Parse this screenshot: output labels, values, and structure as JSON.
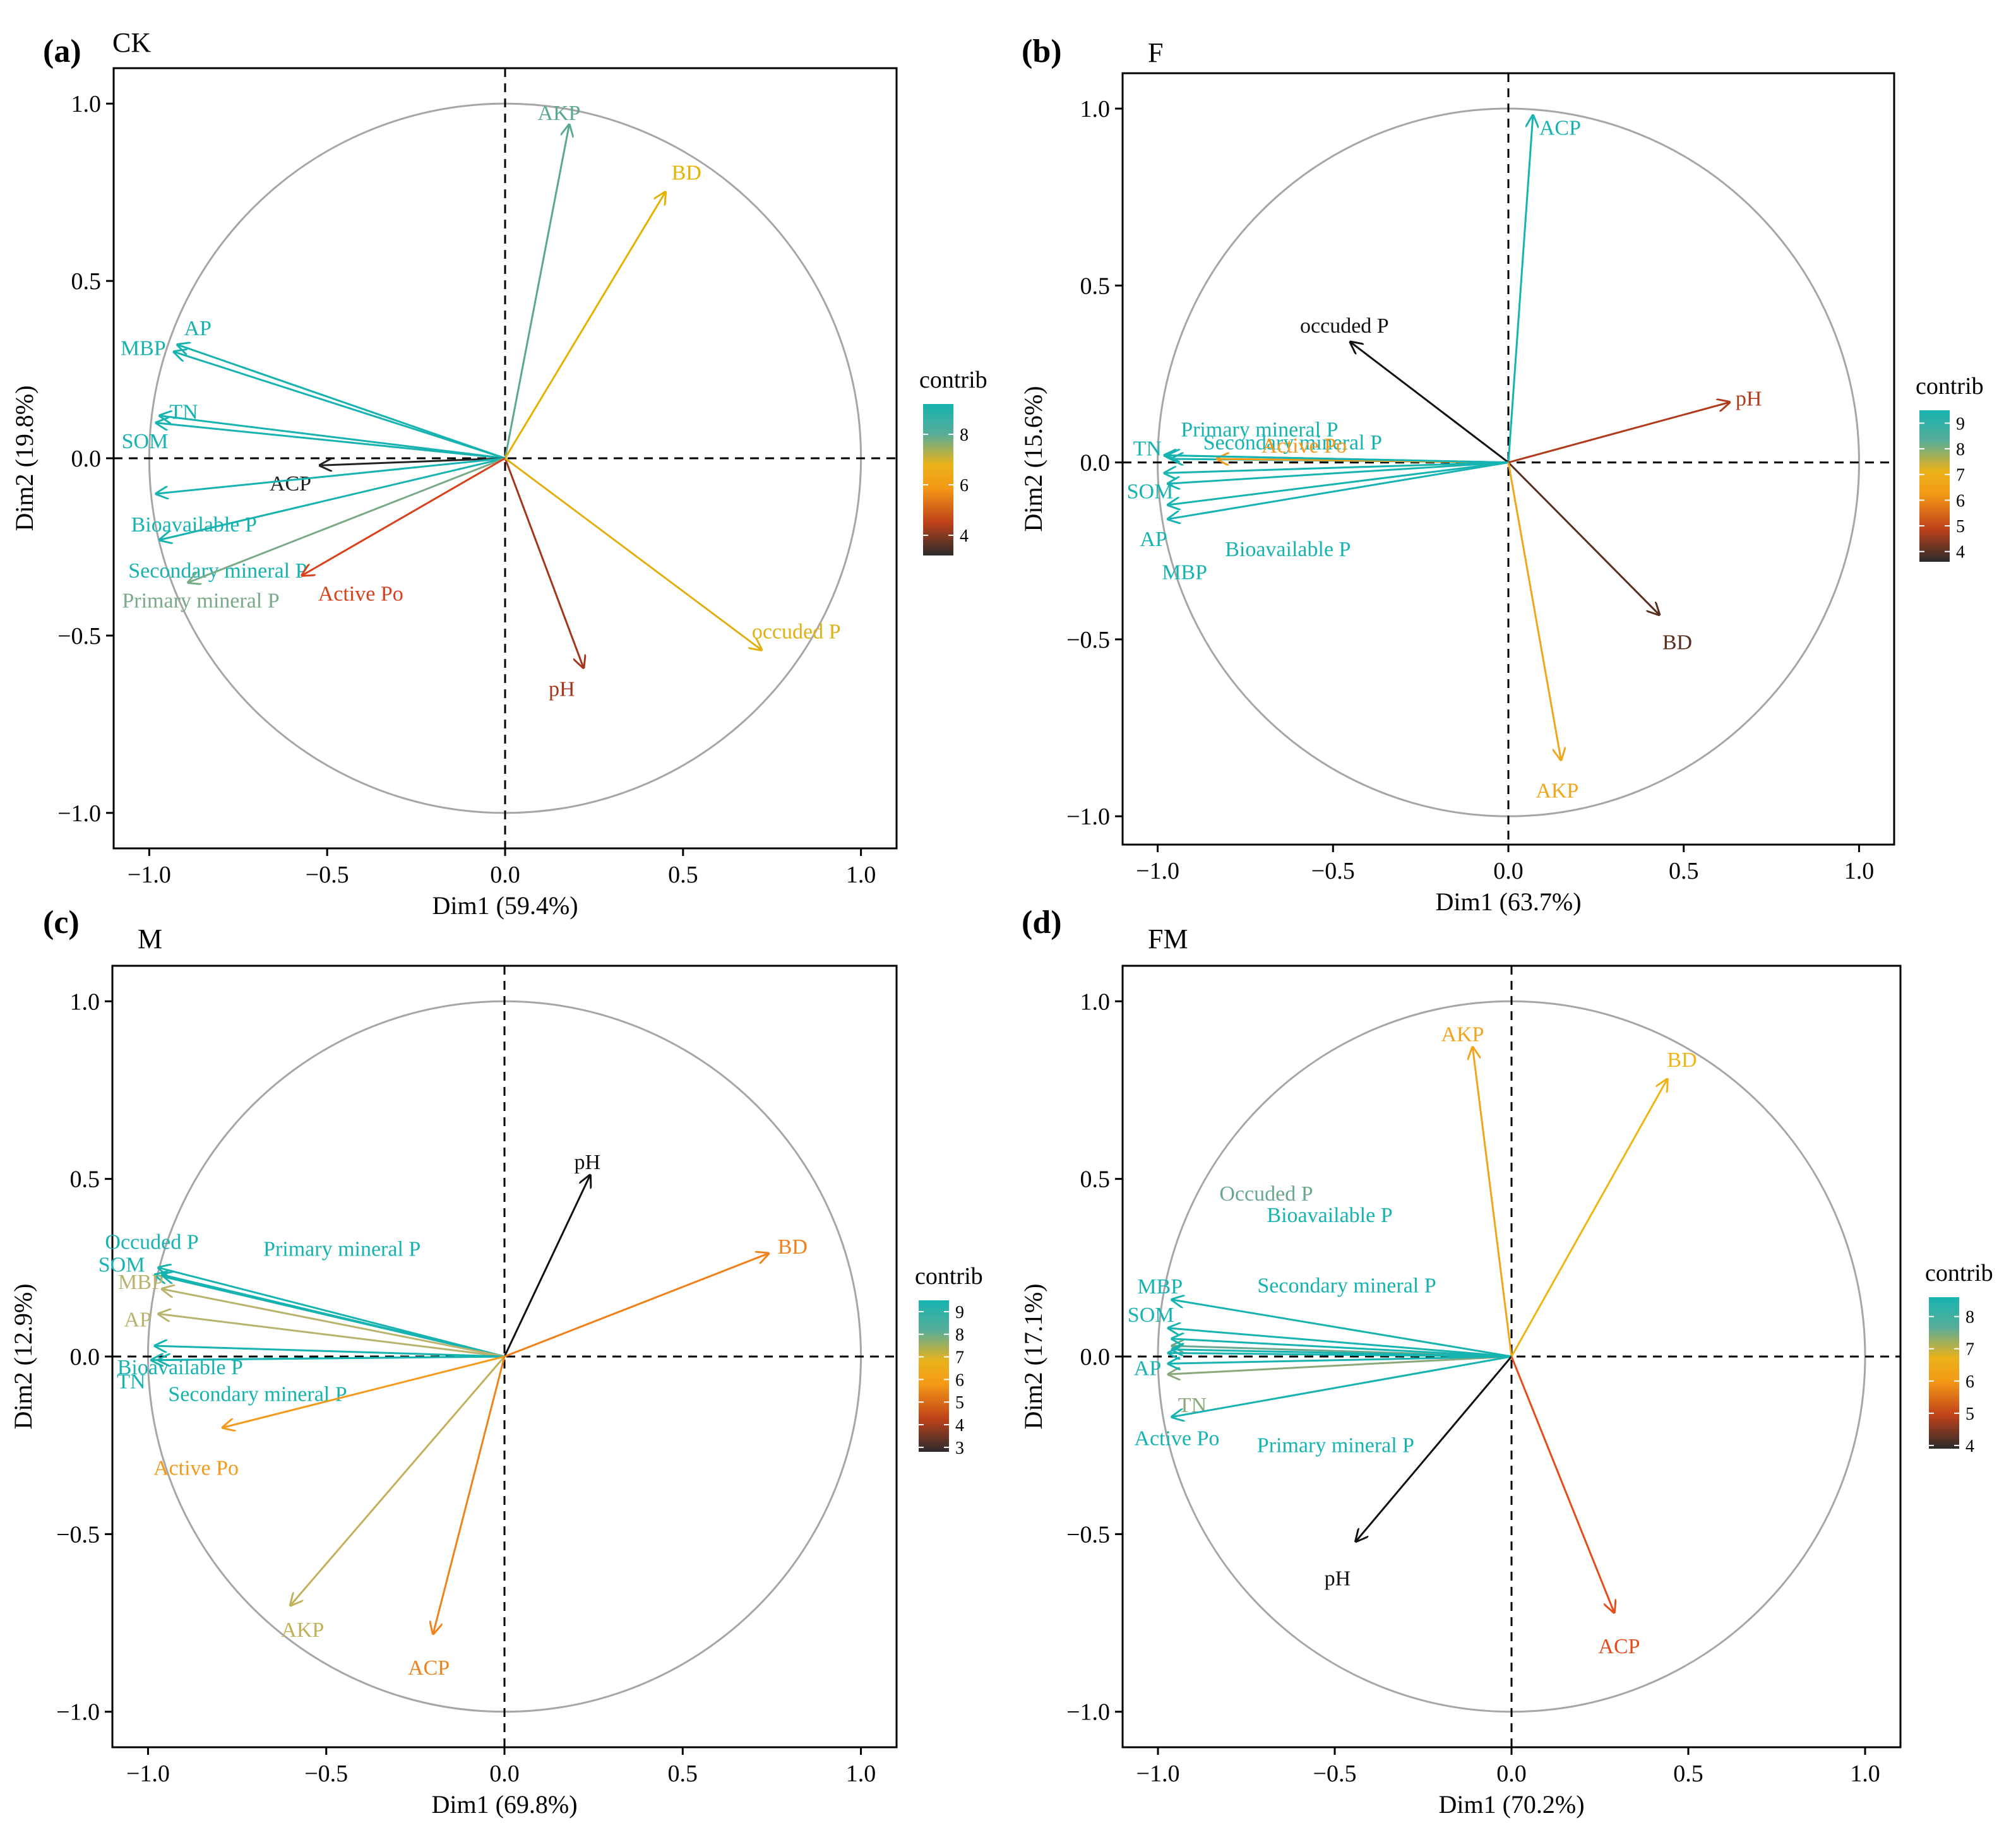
{
  "chart_data": [
    {
      "type": "scatter",
      "label": "(a)",
      "title": "CK",
      "xlabel": "Dim1 (59.4%)",
      "ylabel": "Dim2 (19.8%)",
      "xlim": [
        -1.1,
        1.1
      ],
      "ylim": [
        -1.1,
        1.1
      ],
      "xticks": [
        -1.0,
        -0.5,
        0.0,
        0.5,
        1.0
      ],
      "yticks": [
        -1.0,
        -0.5,
        0.0,
        0.5,
        1.0
      ],
      "xtick_labels": [
        "−1.0",
        "−0.5",
        "0.0",
        "0.5",
        "1.0"
      ],
      "ytick_labels": [
        "−1.0",
        "−0.5",
        "0.0",
        "0.5",
        "1.0"
      ],
      "legend_title": "contrib",
      "legend_ticks": [
        4,
        6,
        8
      ],
      "legend_range": [
        3.2,
        9.2
      ],
      "vectors": [
        {
          "name": "AKP",
          "x": 0.18,
          "y": 0.94,
          "color": "#5aa88f"
        },
        {
          "name": "BD",
          "x": 0.45,
          "y": 0.75,
          "color": "#e6b200"
        },
        {
          "name": "AP",
          "x": -0.92,
          "y": 0.32,
          "color": "#16b3b0"
        },
        {
          "name": "MBP",
          "x": -0.93,
          "y": 0.3,
          "color": "#16b3b0"
        },
        {
          "name": "TN",
          "x": -0.97,
          "y": 0.12,
          "color": "#16b3b0"
        },
        {
          "name": "SOM",
          "x": -0.98,
          "y": 0.1,
          "color": "#16b3b0"
        },
        {
          "name": "ACP",
          "x": -0.52,
          "y": -0.02,
          "color": "#222222"
        },
        {
          "name": "Bioavailable P",
          "x": -0.98,
          "y": -0.1,
          "color": "#16b3b0"
        },
        {
          "name": "Secondary mineral P",
          "x": -0.97,
          "y": -0.23,
          "color": "#16b3b0"
        },
        {
          "name": "Primary mineral P",
          "x": -0.89,
          "y": -0.35,
          "color": "#7aaa88"
        },
        {
          "name": "Active Po",
          "x": -0.57,
          "y": -0.33,
          "color": "#d8411a"
        },
        {
          "name": "pH",
          "x": 0.22,
          "y": -0.59,
          "color": "#a63418"
        },
        {
          "name": "occuded  P",
          "x": 0.72,
          "y": -0.54,
          "color": "#e0b015"
        }
      ]
    },
    {
      "type": "scatter",
      "label": "(b)",
      "title": "F",
      "xlabel": "Dim1 (63.7%)",
      "ylabel": "Dim2 (15.6%)",
      "xlim": [
        -1.1,
        1.1
      ],
      "ylim": [
        -1.08,
        1.1
      ],
      "xticks": [
        -1.0,
        -0.5,
        0.0,
        0.5,
        1.0
      ],
      "yticks": [
        -1.0,
        -0.5,
        0.0,
        0.5,
        1.0
      ],
      "xtick_labels": [
        "−1.0",
        "−0.5",
        "0.0",
        "0.5",
        "1.0"
      ],
      "ytick_labels": [
        "−1.0",
        "−0.5",
        "0.0",
        "0.5",
        "1.0"
      ],
      "legend_title": "contrib",
      "legend_ticks": [
        4,
        5,
        6,
        7,
        8,
        9
      ],
      "legend_range": [
        3.6,
        9.5
      ],
      "vectors": [
        {
          "name": "ACP",
          "x": 0.07,
          "y": 0.98,
          "color": "#16b3b0"
        },
        {
          "name": "occuded P",
          "x": -0.45,
          "y": 0.34,
          "color": "#111111"
        },
        {
          "name": "pH",
          "x": 0.63,
          "y": 0.17,
          "color": "#b03a1a"
        },
        {
          "name": "Primary mineral P",
          "x": -0.97,
          "y": 0.02,
          "color": "#16b3b0"
        },
        {
          "name": "Secondary mineral P",
          "x": -0.96,
          "y": 0.01,
          "color": "#16b3b0"
        },
        {
          "name": "Active Po",
          "x": -0.83,
          "y": 0.01,
          "color": "#f39a1a"
        },
        {
          "name": "TN",
          "x": -0.98,
          "y": 0.02,
          "color": "#16b3b0"
        },
        {
          "name": "SOM",
          "x": -0.98,
          "y": -0.03,
          "color": "#16b3b0"
        },
        {
          "name": "AP",
          "x": -0.97,
          "y": -0.12,
          "color": "#16b3b0"
        },
        {
          "name": "MBP",
          "x": -0.97,
          "y": -0.16,
          "color": "#16b3b0"
        },
        {
          "name": "Bioavailable P",
          "x": -0.97,
          "y": -0.06,
          "color": "#16b3b0"
        },
        {
          "name": "BD",
          "x": 0.43,
          "y": -0.43,
          "color": "#5a2e1e"
        },
        {
          "name": "AKP",
          "x": 0.15,
          "y": -0.84,
          "color": "#f0a51a"
        }
      ]
    },
    {
      "type": "scatter",
      "label": "(c)",
      "title": "M",
      "xlabel": "Dim1 (69.8%)",
      "ylabel": "Dim2 (12.9%)",
      "xlim": [
        -1.1,
        1.1
      ],
      "ylim": [
        -1.1,
        1.1
      ],
      "xticks": [
        -1.0,
        -0.5,
        0.0,
        0.5,
        1.0
      ],
      "yticks": [
        -1.0,
        -0.5,
        0.0,
        0.5,
        1.0
      ],
      "xtick_labels": [
        "−1.0",
        "−0.5",
        "0.0",
        "0.5",
        "1.0"
      ],
      "ytick_labels": [
        "−1.0",
        "−0.5",
        "0.0",
        "0.5",
        "1.0"
      ],
      "legend_title": "contrib",
      "legend_ticks": [
        3,
        4,
        5,
        6,
        7,
        8,
        9
      ],
      "legend_range": [
        2.8,
        9.5
      ],
      "vectors": [
        {
          "name": "pH",
          "x": 0.24,
          "y": 0.51,
          "color": "#111111"
        },
        {
          "name": "BD",
          "x": 0.74,
          "y": 0.29,
          "color": "#f28019"
        },
        {
          "name": "Occuded P",
          "x": -0.97,
          "y": 0.25,
          "color": "#16b3b0"
        },
        {
          "name": "Primary mineral P",
          "x": -0.96,
          "y": 0.23,
          "color": "#16b3b0"
        },
        {
          "name": "SOM",
          "x": -0.98,
          "y": 0.23,
          "color": "#16b3b0"
        },
        {
          "name": "MBP",
          "x": -0.96,
          "y": 0.19,
          "color": "#b9b36e"
        },
        {
          "name": "AP",
          "x": -0.97,
          "y": 0.12,
          "color": "#b9b36e"
        },
        {
          "name": "Bioavailable P",
          "x": -0.98,
          "y": 0.03,
          "color": "#16b3b0"
        },
        {
          "name": "TN",
          "x": -0.99,
          "y": -0.01,
          "color": "#16b3b0"
        },
        {
          "name": "Secondary mineral P",
          "x": -0.97,
          "y": -0.01,
          "color": "#16b3b0"
        },
        {
          "name": "Active Po",
          "x": -0.79,
          "y": -0.2,
          "color": "#f39a1a"
        },
        {
          "name": "AKP",
          "x": -0.6,
          "y": -0.7,
          "color": "#c2b15a"
        },
        {
          "name": "ACP",
          "x": -0.2,
          "y": -0.78,
          "color": "#f0821a"
        }
      ]
    },
    {
      "type": "scatter",
      "label": "(d)",
      "title": "FM",
      "xlabel": "Dim1 (70.2%)",
      "ylabel": "Dim2 (17.1%)",
      "xlim": [
        -1.1,
        1.1
      ],
      "ylim": [
        -1.1,
        1.1
      ],
      "xticks": [
        -1.0,
        -0.5,
        0.0,
        0.5,
        1.0
      ],
      "yticks": [
        -1.0,
        -0.5,
        0.0,
        0.5,
        1.0
      ],
      "xtick_labels": [
        "−1.0",
        "−0.5",
        "0.0",
        "0.5",
        "1.0"
      ],
      "ytick_labels": [
        "−1.0",
        "−0.5",
        "0.0",
        "0.5",
        "1.0"
      ],
      "legend_title": "contrib",
      "legend_ticks": [
        4,
        5,
        6,
        7,
        8
      ],
      "legend_range": [
        3.9,
        8.6
      ],
      "vectors": [
        {
          "name": "AKP",
          "x": -0.11,
          "y": 0.87,
          "color": "#f0a51a"
        },
        {
          "name": "BD",
          "x": 0.44,
          "y": 0.78,
          "color": "#f0b515"
        },
        {
          "name": "Occuded P",
          "x": -0.96,
          "y": 0.03,
          "color": "#6aa88e"
        },
        {
          "name": "Bioavailable P",
          "x": -0.96,
          "y": 0.05,
          "color": "#16b3b0"
        },
        {
          "name": "MBP",
          "x": -0.96,
          "y": 0.16,
          "color": "#16b3b0"
        },
        {
          "name": "Secondary mineral P",
          "x": -0.96,
          "y": 0.02,
          "color": "#16b3b0"
        },
        {
          "name": "SOM",
          "x": -0.97,
          "y": 0.08,
          "color": "#16b3b0"
        },
        {
          "name": "AP",
          "x": -0.97,
          "y": 0.01,
          "color": "#16b3b0"
        },
        {
          "name": "TN",
          "x": -0.97,
          "y": -0.05,
          "color": "#8aa87a"
        },
        {
          "name": "Primary mineral P",
          "x": -0.97,
          "y": -0.02,
          "color": "#16b3b0"
        },
        {
          "name": "Active Po",
          "x": -0.96,
          "y": -0.17,
          "color": "#16b3b0"
        },
        {
          "name": "pH",
          "x": -0.44,
          "y": -0.52,
          "color": "#111111"
        },
        {
          "name": "ACP",
          "x": 0.29,
          "y": -0.72,
          "color": "#e84a1a"
        }
      ]
    }
  ]
}
